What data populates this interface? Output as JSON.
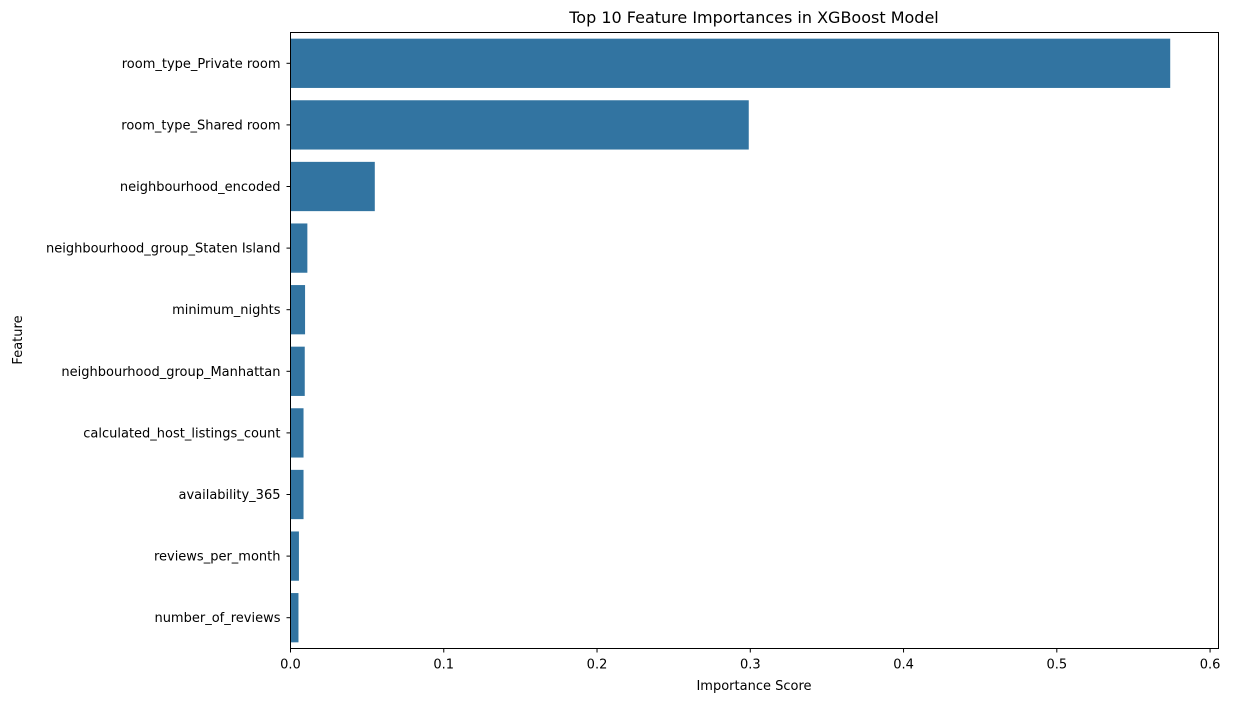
{
  "chart_data": {
    "type": "bar",
    "orientation": "horizontal",
    "title": "Top 10 Feature Importances in XGBoost Model",
    "xlabel": "Importance Score",
    "ylabel": "Feature",
    "categories": [
      "room_type_Private room",
      "room_type_Shared room",
      "neighbourhood_encoded",
      "neighbourhood_group_Staten Island",
      "minimum_nights",
      "neighbourhood_group_Manhattan",
      "calculated_host_listings_count",
      "availability_365",
      "reviews_per_month",
      "number_of_reviews"
    ],
    "values": [
      0.574,
      0.299,
      0.055,
      0.011,
      0.0095,
      0.0093,
      0.0085,
      0.0085,
      0.0055,
      0.0052
    ],
    "xlim": [
      0,
      0.6055
    ],
    "xticks": [
      0,
      0.1,
      0.2,
      0.3,
      0.4,
      0.5,
      0.6
    ],
    "xtick_labels": [
      "0.0",
      "0.1",
      "0.2",
      "0.3",
      "0.4",
      "0.5",
      "0.6"
    ],
    "bar_color": "#3274a1",
    "grid": false,
    "legend": "none"
  }
}
